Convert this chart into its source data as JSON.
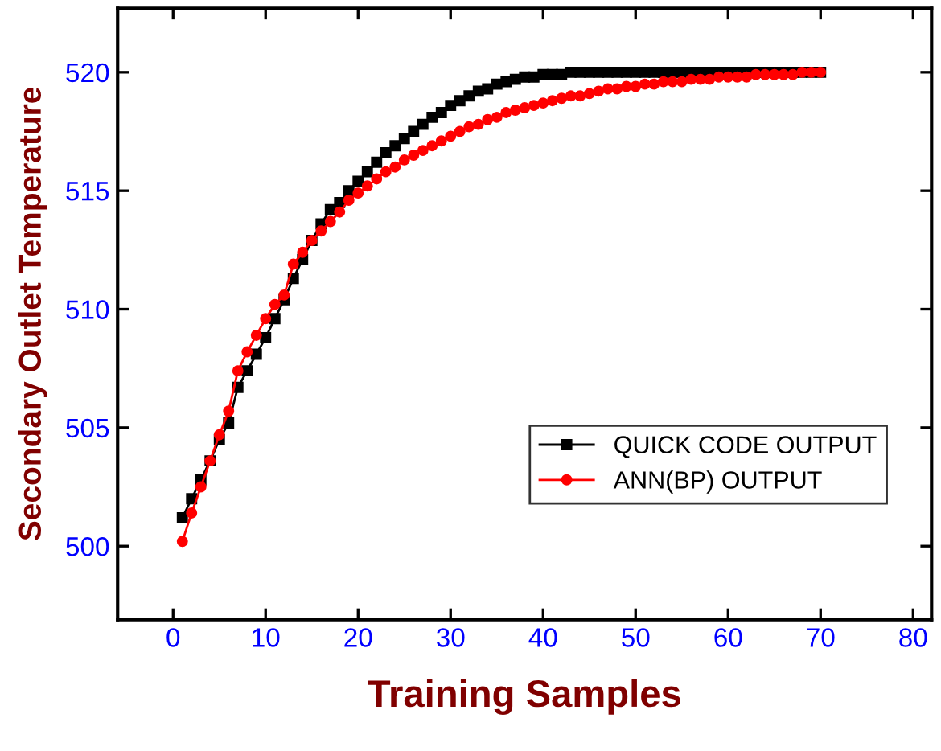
{
  "chart_data": {
    "type": "line",
    "xlabel": "Training Samples",
    "ylabel": "Secondary Outlet Temperature",
    "x": [
      1,
      2,
      3,
      4,
      5,
      6,
      7,
      8,
      9,
      10,
      11,
      12,
      13,
      14,
      15,
      16,
      17,
      18,
      19,
      20,
      21,
      22,
      23,
      24,
      25,
      26,
      27,
      28,
      29,
      30,
      31,
      32,
      33,
      34,
      35,
      36,
      37,
      38,
      39,
      40,
      41,
      42,
      43,
      44,
      45,
      46,
      47,
      48,
      49,
      50,
      51,
      52,
      53,
      54,
      55,
      56,
      57,
      58,
      59,
      60,
      61,
      62,
      63,
      64,
      65,
      66,
      67,
      68,
      69,
      70
    ],
    "series": [
      {
        "name": "QUICK CODE OUTPUT",
        "color": "#000000",
        "marker": "square",
        "values": [
          501.2,
          502.0,
          502.8,
          503.6,
          504.5,
          505.2,
          506.7,
          507.4,
          508.1,
          508.8,
          509.6,
          510.4,
          511.3,
          512.1,
          512.9,
          513.6,
          514.2,
          514.5,
          515.0,
          515.4,
          515.8,
          516.2,
          516.6,
          516.9,
          517.2,
          517.5,
          517.8,
          518.1,
          518.3,
          518.6,
          518.8,
          519.0,
          519.2,
          519.3,
          519.5,
          519.6,
          519.7,
          519.8,
          519.8,
          519.9,
          519.9,
          519.9,
          520.0,
          520.0,
          520.0,
          520.0,
          520.0,
          520.0,
          520.0,
          520.0,
          520.0,
          520.0,
          520.0,
          520.0,
          520.0,
          520.0,
          520.0,
          520.0,
          520.0,
          520.0,
          520.0,
          520.0,
          520.0,
          520.0,
          520.0,
          520.0,
          520.0,
          520.0,
          520.0,
          520.0
        ]
      },
      {
        "name": "ANN(BP) OUTPUT",
        "color": "#ff0000",
        "marker": "circle",
        "values": [
          500.2,
          501.4,
          502.5,
          503.6,
          504.7,
          505.7,
          507.4,
          508.2,
          508.9,
          509.6,
          510.2,
          510.6,
          511.9,
          512.4,
          512.9,
          513.3,
          513.7,
          514.1,
          514.6,
          514.9,
          515.2,
          515.5,
          515.8,
          516.0,
          516.3,
          516.5,
          516.7,
          516.9,
          517.1,
          517.3,
          517.5,
          517.7,
          517.8,
          518.0,
          518.1,
          518.3,
          518.4,
          518.5,
          518.6,
          518.7,
          518.8,
          518.9,
          519.0,
          519.0,
          519.1,
          519.2,
          519.3,
          519.3,
          519.4,
          519.4,
          519.5,
          519.5,
          519.6,
          519.6,
          519.6,
          519.7,
          519.7,
          519.7,
          519.8,
          519.8,
          519.8,
          519.8,
          519.9,
          519.9,
          519.9,
          519.9,
          519.9,
          520.0,
          520.0,
          520.0
        ]
      }
    ],
    "xlim": [
      -6,
      82
    ],
    "ylim": [
      496.9,
      522.7
    ],
    "xticks": [
      0,
      10,
      20,
      30,
      40,
      50,
      60,
      70,
      80
    ],
    "yticks": [
      500,
      505,
      510,
      515,
      520
    ],
    "legend": "bottom right",
    "grid": false
  }
}
